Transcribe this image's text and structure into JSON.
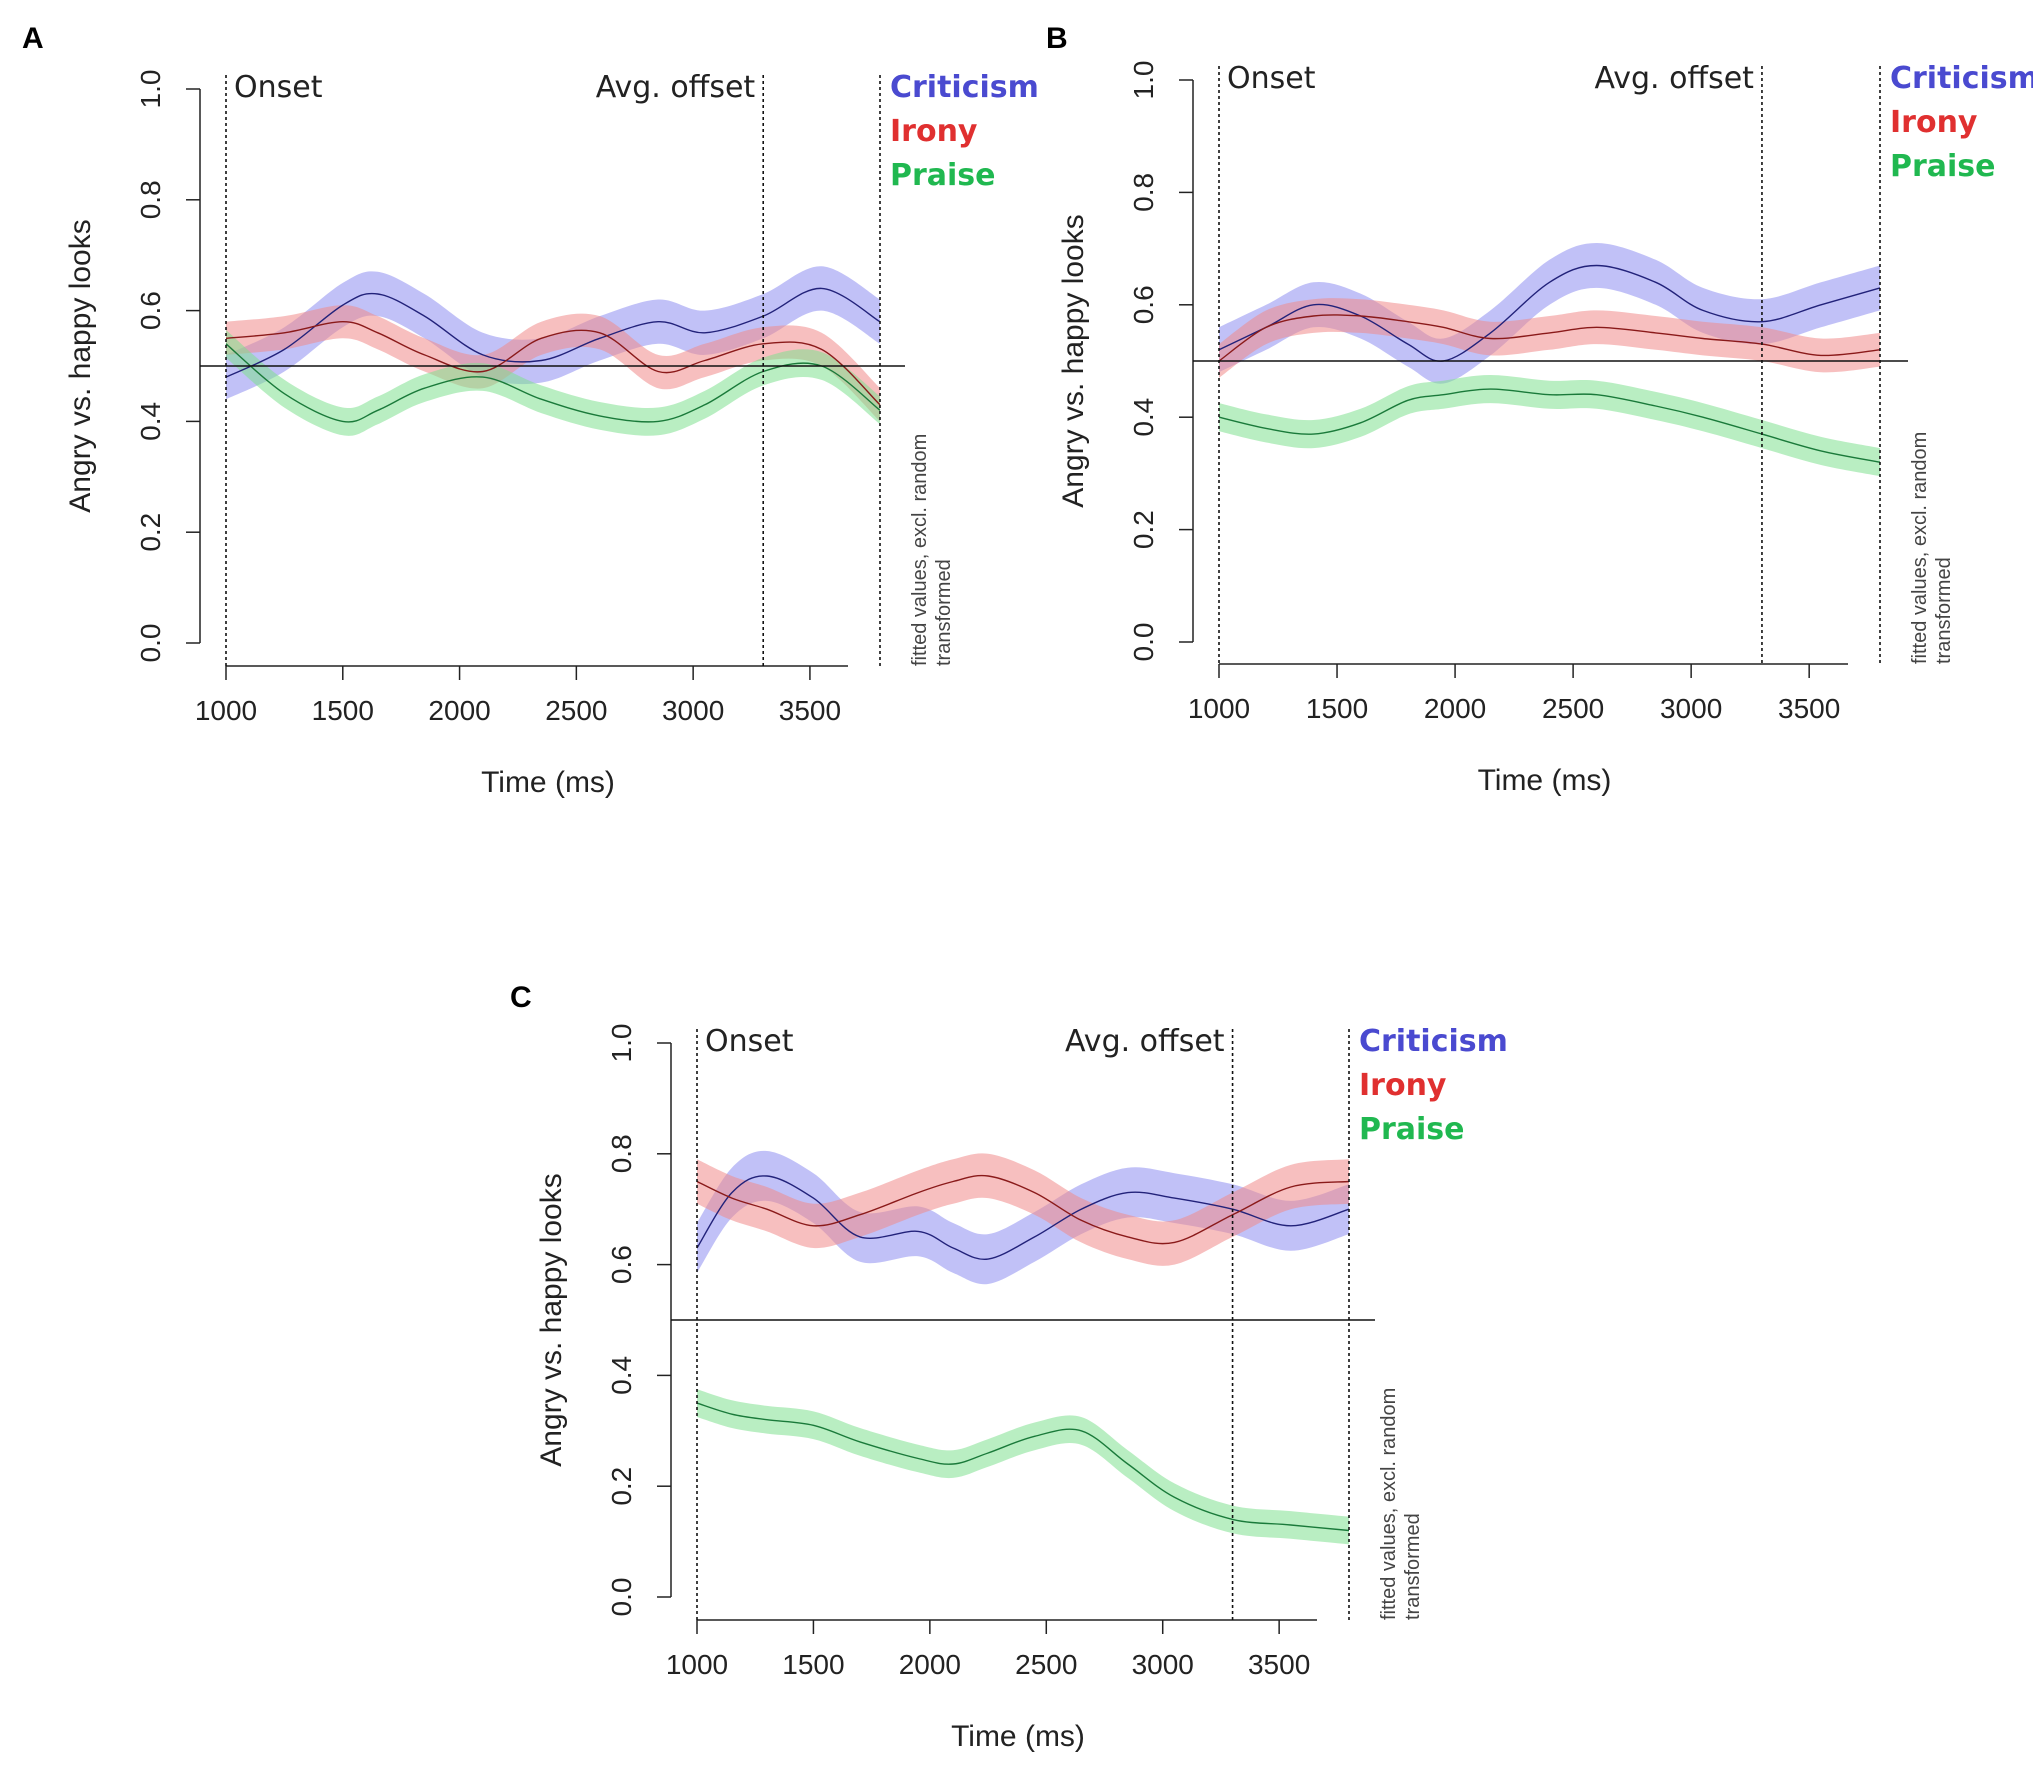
{
  "figure": {
    "colors": {
      "criticism": "#4a4ad0",
      "criticism_band": "#8e8ef0",
      "irony": "#e03030",
      "irony_band": "#f08a8a",
      "praise": "#20b850",
      "praise_band": "#80e090",
      "axis": "#222222"
    }
  },
  "chart_data": [
    {
      "panel": "A",
      "type": "line",
      "xlabel": "Time (ms)",
      "ylabel": "Angry vs. happy looks",
      "xlim": [
        1000,
        3800
      ],
      "ylim": [
        0.0,
        1.0
      ],
      "xticks": [
        "1000",
        "1500",
        "2000",
        "2500",
        "3000",
        "3500"
      ],
      "yticks": [
        "0.0",
        "0.2",
        "0.4",
        "0.6",
        "0.8",
        "1.0"
      ],
      "reference_line": 0.5,
      "markers": [
        {
          "label": "Onset",
          "x": 1000
        },
        {
          "label": "Avg. offset",
          "x": 3300
        },
        {
          "label": "",
          "x": 3800
        }
      ],
      "note": [
        "fitted values, excl. random",
        "transformed"
      ],
      "legend": [
        "Criticism",
        "Irony",
        "Praise"
      ],
      "x": [
        1000,
        1250,
        1500,
        1650,
        1850,
        2100,
        2350,
        2600,
        2850,
        3050,
        3300,
        3550,
        3800
      ],
      "series": [
        {
          "name": "Criticism",
          "values": [
            0.48,
            0.53,
            0.61,
            0.63,
            0.59,
            0.52,
            0.51,
            0.55,
            0.58,
            0.56,
            0.59,
            0.64,
            0.58
          ],
          "band": 0.04
        },
        {
          "name": "Irony",
          "values": [
            0.55,
            0.56,
            0.58,
            0.56,
            0.52,
            0.49,
            0.55,
            0.56,
            0.49,
            0.51,
            0.54,
            0.53,
            0.43
          ],
          "band": 0.03
        },
        {
          "name": "Praise",
          "values": [
            0.54,
            0.45,
            0.4,
            0.42,
            0.46,
            0.48,
            0.44,
            0.41,
            0.4,
            0.43,
            0.49,
            0.5,
            0.42
          ],
          "band": 0.025
        }
      ]
    },
    {
      "panel": "B",
      "type": "line",
      "xlabel": "Time (ms)",
      "ylabel": "Angry vs. happy looks",
      "xlim": [
        1000,
        3800
      ],
      "ylim": [
        0.0,
        1.0
      ],
      "xticks": [
        "1000",
        "1500",
        "2000",
        "2500",
        "3000",
        "3500"
      ],
      "yticks": [
        "0.0",
        "0.2",
        "0.4",
        "0.6",
        "0.8",
        "1.0"
      ],
      "reference_line": 0.5,
      "markers": [
        {
          "label": "Onset",
          "x": 1000
        },
        {
          "label": "Avg. offset",
          "x": 3300
        },
        {
          "label": "",
          "x": 3800
        }
      ],
      "note": [
        "fitted values, excl. random",
        "transformed"
      ],
      "legend": [
        "Criticism",
        "Irony",
        "Praise"
      ],
      "x": [
        1000,
        1200,
        1400,
        1600,
        1800,
        1950,
        2150,
        2400,
        2600,
        2850,
        3050,
        3300,
        3550,
        3800
      ],
      "series": [
        {
          "name": "Criticism",
          "values": [
            0.52,
            0.56,
            0.6,
            0.58,
            0.53,
            0.5,
            0.55,
            0.64,
            0.67,
            0.64,
            0.59,
            0.57,
            0.6,
            0.63
          ],
          "band": 0.04
        },
        {
          "name": "Irony",
          "values": [
            0.5,
            0.56,
            0.58,
            0.58,
            0.57,
            0.56,
            0.54,
            0.55,
            0.56,
            0.55,
            0.54,
            0.53,
            0.51,
            0.52
          ],
          "band": 0.03
        },
        {
          "name": "Praise",
          "values": [
            0.4,
            0.38,
            0.37,
            0.39,
            0.43,
            0.44,
            0.45,
            0.44,
            0.44,
            0.42,
            0.4,
            0.37,
            0.34,
            0.32
          ],
          "band": 0.025
        }
      ]
    },
    {
      "panel": "C",
      "type": "line",
      "xlabel": "Time (ms)",
      "ylabel": "Angry vs. happy looks",
      "xlim": [
        1000,
        3800
      ],
      "ylim": [
        0.0,
        1.0
      ],
      "xticks": [
        "1000",
        "1500",
        "2000",
        "2500",
        "3000",
        "3500"
      ],
      "yticks": [
        "0.0",
        "0.2",
        "0.4",
        "0.6",
        "0.8",
        "1.0"
      ],
      "reference_line": 0.5,
      "markers": [
        {
          "label": "Onset",
          "x": 1000
        },
        {
          "label": "Avg. offset",
          "x": 3300
        },
        {
          "label": "",
          "x": 3800
        }
      ],
      "note": [
        "fitted values, excl. random",
        "transformed"
      ],
      "legend": [
        "Criticism",
        "Irony",
        "Praise"
      ],
      "x": [
        1000,
        1150,
        1300,
        1500,
        1700,
        1950,
        2100,
        2250,
        2450,
        2650,
        2850,
        3050,
        3300,
        3550,
        3800
      ],
      "series": [
        {
          "name": "Criticism",
          "values": [
            0.63,
            0.73,
            0.76,
            0.72,
            0.65,
            0.66,
            0.63,
            0.61,
            0.65,
            0.7,
            0.73,
            0.72,
            0.7,
            0.67,
            0.7
          ],
          "band": 0.045
        },
        {
          "name": "Irony",
          "values": [
            0.75,
            0.72,
            0.7,
            0.67,
            0.69,
            0.73,
            0.75,
            0.76,
            0.73,
            0.68,
            0.65,
            0.64,
            0.69,
            0.74,
            0.75
          ],
          "band": 0.04
        },
        {
          "name": "Praise",
          "values": [
            0.35,
            0.33,
            0.32,
            0.31,
            0.28,
            0.25,
            0.24,
            0.26,
            0.29,
            0.3,
            0.24,
            0.18,
            0.14,
            0.13,
            0.12
          ],
          "band": 0.025
        }
      ]
    }
  ]
}
